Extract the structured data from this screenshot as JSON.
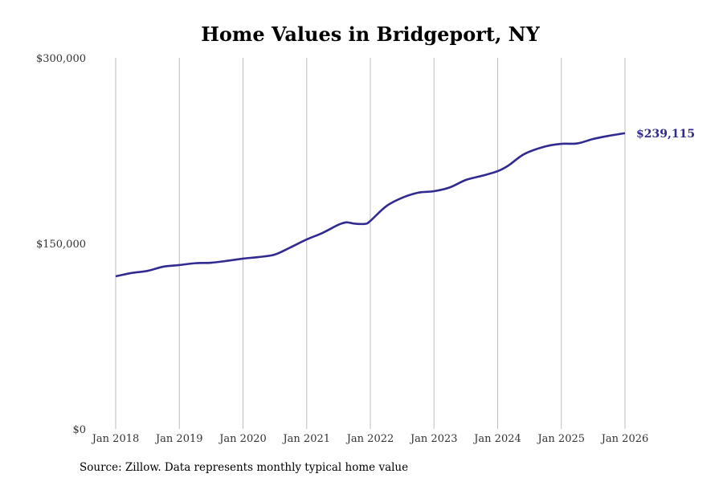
{
  "chart_data": {
    "type": "line",
    "title": "Home Values in Bridgeport, NY",
    "xlabel": "",
    "ylabel": "",
    "ylim": [
      0,
      300000
    ],
    "xlim": [
      2018,
      2026
    ],
    "y_ticks": [
      0,
      150000,
      300000
    ],
    "y_tick_labels": [
      "$0",
      "$150,000",
      "$300,000"
    ],
    "x_ticks": [
      2018,
      2019,
      2020,
      2021,
      2022,
      2023,
      2024,
      2025,
      2026
    ],
    "x_tick_labels": [
      "Jan 2018",
      "Jan 2019",
      "Jan 2020",
      "Jan 2021",
      "Jan 2022",
      "Jan 2023",
      "Jan 2024",
      "Jan 2025",
      "Jan 2026"
    ],
    "grid": "vertical",
    "line_color": "#312a91",
    "series": [
      {
        "name": "Typical home value",
        "x": [
          2018.0,
          2018.25,
          2018.5,
          2018.75,
          2019.0,
          2019.25,
          2019.5,
          2019.75,
          2020.0,
          2020.25,
          2020.5,
          2020.75,
          2021.0,
          2021.25,
          2021.5,
          2021.625,
          2021.75,
          2021.92,
          2022.0,
          2022.25,
          2022.5,
          2022.75,
          2023.0,
          2023.25,
          2023.5,
          2023.75,
          2024.0,
          2024.17,
          2024.42,
          2024.75,
          2025.0,
          2025.25,
          2025.5,
          2025.75,
          2026.0
        ],
        "y": [
          123400,
          126100,
          127800,
          131200,
          132500,
          134000,
          134400,
          135900,
          137700,
          139000,
          141000,
          146900,
          153200,
          158500,
          165100,
          167000,
          166000,
          165800,
          168200,
          180100,
          186900,
          191000,
          192200,
          195300,
          201300,
          204600,
          208400,
          213000,
          222300,
          228400,
          230500,
          230800,
          234400,
          237000,
          239115
        ]
      }
    ],
    "annotations": [
      {
        "text": "$239,115",
        "x": 2026.0,
        "y": 239115
      }
    ]
  },
  "footer": {
    "source": "Source: Zillow. Data represents monthly typical home value"
  }
}
